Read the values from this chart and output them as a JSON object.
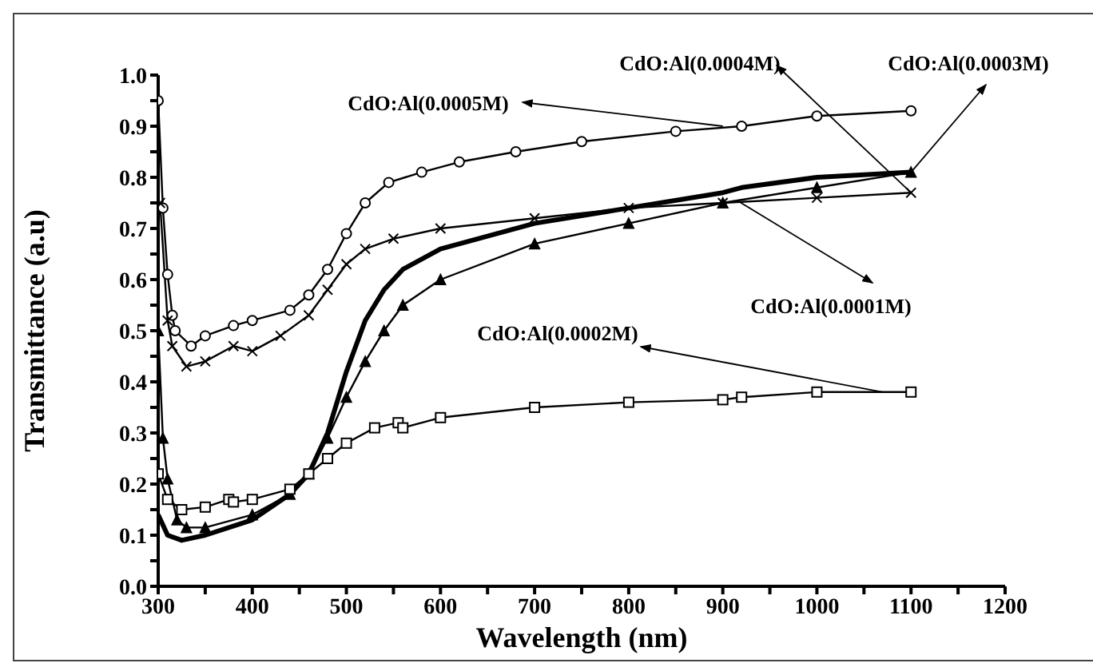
{
  "chart_data": {
    "type": "line",
    "xlabel": "Wavelength (nm)",
    "ylabel": "Transmittance (a.u)",
    "xlim": [
      300,
      1200
    ],
    "xticks": [
      300,
      {
        "value": 350,
        "label": null
      },
      400,
      {
        "value": 450,
        "label": null
      },
      500,
      {
        "value": 550,
        "label": null
      },
      600,
      {
        "value": 650,
        "label": null
      },
      700,
      {
        "value": 750,
        "label": null
      },
      800,
      {
        "value": 850,
        "label": null
      },
      900,
      {
        "value": 950,
        "label": null
      },
      1000,
      {
        "value": 1050,
        "label": null
      },
      1100,
      {
        "value": 1150,
        "label": null
      },
      1200
    ],
    "ylim": [
      0,
      1
    ],
    "yticks": [
      {
        "value": 0,
        "label": "0.0"
      },
      {
        "value": 0.05,
        "label": null
      },
      0.1,
      {
        "value": 0.15,
        "label": null
      },
      0.2,
      {
        "value": 0.25,
        "label": null
      },
      0.3,
      {
        "value": 0.35,
        "label": null
      },
      0.4,
      {
        "value": 0.45,
        "label": null
      },
      0.5,
      {
        "value": 0.55,
        "label": null
      },
      0.6,
      {
        "value": 0.65,
        "label": null
      },
      0.7,
      {
        "value": 0.75,
        "label": null
      },
      0.8,
      {
        "value": 0.85,
        "label": null
      },
      0.9,
      {
        "value": 0.95,
        "label": null
      },
      {
        "value": 1,
        "label": "1.0"
      }
    ],
    "series": [
      {
        "color": "#000000",
        "marker": "circle",
        "x": [
          300,
          305,
          310,
          315,
          318,
          335,
          350,
          380,
          400,
          440,
          460,
          480,
          500,
          520,
          545,
          580,
          620,
          680,
          750,
          850,
          920,
          1000,
          1100
        ],
        "values": [
          0.95,
          0.74,
          0.61,
          0.53,
          0.5,
          0.47,
          0.49,
          0.51,
          0.52,
          0.54,
          0.57,
          0.62,
          0.69,
          0.75,
          0.79,
          0.81,
          0.83,
          0.85,
          0.87,
          0.89,
          0.9,
          0.92,
          0.93
        ]
      },
      {
        "color": "#000000",
        "marker": "cross",
        "x": [
          302,
          310,
          315,
          330,
          350,
          380,
          400,
          430,
          460,
          480,
          500,
          520,
          550,
          600,
          700,
          800,
          900,
          1000,
          1100
        ],
        "values": [
          0.75,
          0.52,
          0.47,
          0.43,
          0.44,
          0.47,
          0.46,
          0.49,
          0.53,
          0.58,
          0.63,
          0.66,
          0.68,
          0.7,
          0.72,
          0.74,
          0.75,
          0.76,
          0.77
        ]
      },
      {
        "color": "#000000",
        "marker": "none",
        "x": [
          300,
          310,
          325,
          350,
          400,
          440,
          460,
          480,
          500,
          520,
          540,
          560,
          600,
          700,
          800,
          900,
          920,
          1000,
          1100
        ],
        "values": [
          0.14,
          0.1,
          0.09,
          0.1,
          0.13,
          0.18,
          0.22,
          0.3,
          0.42,
          0.52,
          0.58,
          0.62,
          0.66,
          0.71,
          0.74,
          0.77,
          0.78,
          0.8,
          0.81
        ]
      },
      {
        "color": "#000000",
        "marker": "triangle",
        "x": [
          300,
          305,
          310,
          320,
          330,
          350,
          400,
          440,
          460,
          480,
          500,
          520,
          540,
          560,
          600,
          700,
          800,
          900,
          1000,
          1100
        ],
        "values": [
          0.5,
          0.29,
          0.21,
          0.13,
          0.115,
          0.115,
          0.14,
          0.18,
          0.22,
          0.29,
          0.37,
          0.44,
          0.5,
          0.55,
          0.6,
          0.67,
          0.71,
          0.75,
          0.78,
          0.81
        ]
      },
      {
        "color": "#000000",
        "marker": "square",
        "x": [
          300,
          310,
          325,
          350,
          375,
          380,
          400,
          440,
          460,
          480,
          500,
          530,
          555,
          560,
          600,
          700,
          800,
          900,
          920,
          1000,
          1100
        ],
        "values": [
          0.22,
          0.17,
          0.15,
          0.155,
          0.17,
          0.165,
          0.17,
          0.19,
          0.22,
          0.25,
          0.28,
          0.31,
          0.32,
          0.31,
          0.33,
          0.35,
          0.36,
          0.365,
          0.37,
          0.38,
          0.38
        ]
      }
    ],
    "annotations": [
      {
        "text": "CdO:Al(0.0004M)",
        "x": 1100,
        "y": 0.77
      },
      {
        "text": "CdO:Al(0.0003M)",
        "x": 1100,
        "y": 0.81
      },
      {
        "text": "CdO:Al(0.0005M)",
        "x": 900,
        "y": 0.9
      },
      {
        "text": "CdO:Al(0.0001M)",
        "x": 915,
        "y": 0.755
      },
      {
        "text": "CdO:Al(0.0002M)",
        "x": 1070,
        "y": 0.38
      }
    ]
  }
}
